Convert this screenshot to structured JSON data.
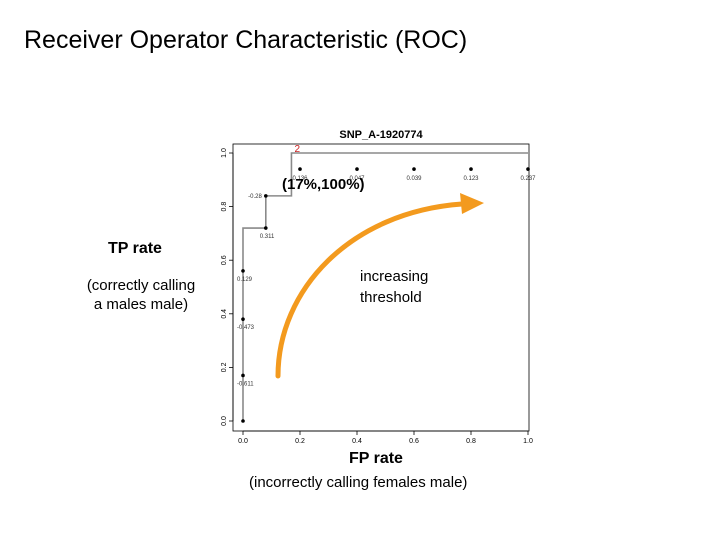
{
  "slide": {
    "title": "Receiver Operator Characteristic (ROC)",
    "tp_label": "TP rate",
    "tp_sub_line1": "(correctly calling",
    "tp_sub_line2": "a males male)",
    "fp_label": "FP rate",
    "fp_sub": "(incorrectly calling females male)",
    "threshold_line1": "increasing",
    "threshold_line2": "threshold",
    "highlight": "(17%,100%)",
    "arrow_color": "#f39a1e",
    "marker_color": "#cc2222"
  },
  "chart_data": {
    "type": "line",
    "title": "SNP_A-1920774",
    "xlim": [
      0,
      1
    ],
    "ylim": [
      0,
      1
    ],
    "x_ticks": [
      "0.0",
      "0.2",
      "0.4",
      "0.6",
      "0.8",
      "1.0"
    ],
    "y_ticks": [
      "0.0",
      "0.2",
      "0.4",
      "0.6",
      "0.8",
      "1.0"
    ],
    "x": [
      0.0,
      0.0,
      0.0,
      0.0,
      0.0,
      0.08,
      0.08,
      0.17,
      0.17,
      0.4,
      0.6,
      0.8,
      1.0
    ],
    "y": [
      0.0,
      0.17,
      0.38,
      0.56,
      0.72,
      0.72,
      0.84,
      0.84,
      1.0,
      1.0,
      1.0,
      1.0,
      1.0
    ],
    "points": [
      {
        "x": 0.0,
        "y": 0.0,
        "label": ""
      },
      {
        "x": 0.0,
        "y": 0.17,
        "label": "-0.611"
      },
      {
        "x": 0.0,
        "y": 0.38,
        "label": "-0.473"
      },
      {
        "x": 0.0,
        "y": 0.56,
        "label": "0.129"
      },
      {
        "x": 0.08,
        "y": 0.72,
        "label": "0.311"
      },
      {
        "x": 0.08,
        "y": 0.84,
        "label": "-0.28"
      },
      {
        "x": 0.17,
        "y": 1.0,
        "label": "2"
      },
      {
        "x": 0.2,
        "y": 0.94,
        "label": "0.136"
      },
      {
        "x": 0.4,
        "y": 0.94,
        "label": "0.047"
      },
      {
        "x": 0.6,
        "y": 0.94,
        "label": "0.039"
      },
      {
        "x": 0.8,
        "y": 0.94,
        "label": "0.123"
      },
      {
        "x": 1.0,
        "y": 0.94,
        "label": "0.237"
      }
    ],
    "grid": false
  }
}
